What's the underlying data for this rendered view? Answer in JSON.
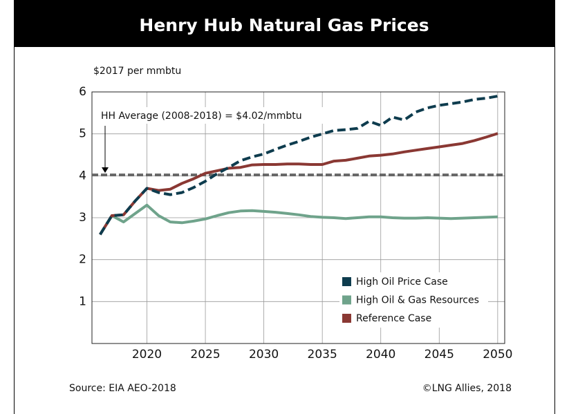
{
  "chart_data": {
    "type": "line",
    "title": "Henry Hub Natural Gas Prices",
    "y_label": "$2017 per mmbtu",
    "x": [
      2016,
      2017,
      2018,
      2019,
      2020,
      2021,
      2022,
      2023,
      2024,
      2025,
      2026,
      2027,
      2028,
      2029,
      2030,
      2031,
      2032,
      2033,
      2034,
      2035,
      2036,
      2037,
      2038,
      2039,
      2040,
      2041,
      2042,
      2043,
      2044,
      2045,
      2046,
      2047,
      2048,
      2049,
      2050
    ],
    "series": [
      {
        "name": "High Oil Price Case",
        "color": "#0e3c4e",
        "dashed": true,
        "values": [
          2.6,
          3.05,
          3.07,
          3.4,
          3.7,
          3.6,
          3.55,
          3.6,
          3.72,
          3.87,
          4.05,
          4.2,
          4.36,
          4.45,
          4.52,
          4.63,
          4.73,
          4.82,
          4.92,
          5.0,
          5.08,
          5.1,
          5.13,
          5.3,
          5.2,
          5.4,
          5.33,
          5.52,
          5.62,
          5.68,
          5.72,
          5.76,
          5.82,
          5.85,
          5.9
        ]
      },
      {
        "name": "High Oil & Gas Resources",
        "color": "#6fa38b",
        "dashed": false,
        "values": [
          2.6,
          3.05,
          2.9,
          3.1,
          3.3,
          3.05,
          2.9,
          2.88,
          2.92,
          2.97,
          3.05,
          3.12,
          3.16,
          3.17,
          3.15,
          3.13,
          3.1,
          3.07,
          3.03,
          3.01,
          3.0,
          2.98,
          3.0,
          3.02,
          3.02,
          3.0,
          2.99,
          2.99,
          3.0,
          2.99,
          2.98,
          2.99,
          3.0,
          3.01,
          3.02
        ]
      },
      {
        "name": "Reference Case",
        "color": "#8a3833",
        "dashed": false,
        "values": [
          2.6,
          3.05,
          3.07,
          3.4,
          3.7,
          3.65,
          3.68,
          3.82,
          3.93,
          4.06,
          4.12,
          4.18,
          4.2,
          4.26,
          4.27,
          4.27,
          4.28,
          4.28,
          4.27,
          4.27,
          4.35,
          4.37,
          4.42,
          4.47,
          4.49,
          4.52,
          4.57,
          4.61,
          4.65,
          4.69,
          4.73,
          4.77,
          4.84,
          4.92,
          5.01
        ]
      }
    ],
    "reference_line": {
      "value": 4.02,
      "label": "HH Average (2008-2018) = $4.02/mmbtu",
      "color": "#666666"
    },
    "xlim": [
      2015.3,
      2050.6
    ],
    "xticks": [
      2020,
      2025,
      2030,
      2035,
      2040,
      2045,
      2050
    ],
    "ylim": [
      0,
      6
    ],
    "yticks": [
      1,
      2,
      3,
      4,
      5,
      6
    ],
    "grid": true,
    "legend": "lower right",
    "source": "Source: EIA AEO-2018",
    "credit": "©LNG Allies, 2018"
  }
}
